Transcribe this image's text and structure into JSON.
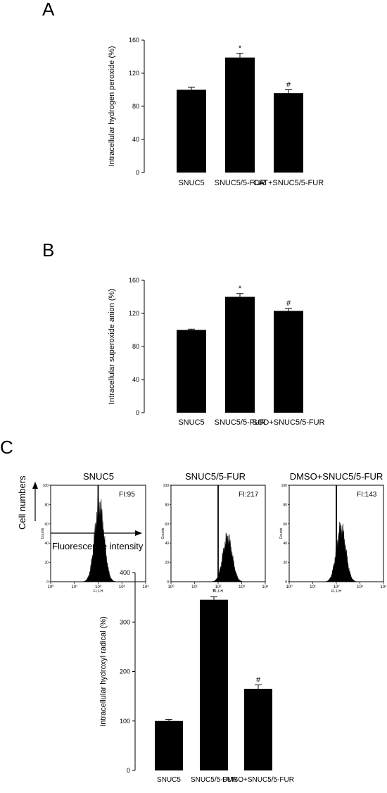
{
  "panels": {
    "a": {
      "letter": "A"
    },
    "b": {
      "letter": "B"
    },
    "c": {
      "letter": "C"
    }
  },
  "histograms": {
    "y_axis_label": "Cell numbers",
    "x_axis_label": "Fluorescence intensity",
    "inner_ylabel": "Counts",
    "inner_xlabel": "FL1-H",
    "y_ticks": [
      "0",
      "20",
      "40",
      "60",
      "80",
      "100"
    ],
    "x_ticks": [
      "10⁰",
      "10¹",
      "10²",
      "10³",
      "10⁴"
    ],
    "items": [
      {
        "title": "SNUC5",
        "fi": "FI:95",
        "peak_log": 2.05,
        "peak_height": 0.78
      },
      {
        "title": "SNUC5/5-FUR",
        "fi": "FI:217",
        "peak_log": 2.4,
        "peak_height": 0.45
      },
      {
        "title": "DMSO+SNUC5/5-FUR",
        "fi": "FI:143",
        "peak_log": 2.2,
        "peak_height": 0.55
      }
    ]
  },
  "chart_data": [
    {
      "type": "bar",
      "categories": [
        "SNUC5",
        "SNUC5/5-FUR",
        "CAT+SNUC5/5-FUR"
      ],
      "values": [
        100,
        139,
        96
      ],
      "errors": [
        3,
        5,
        4
      ],
      "markers": [
        "",
        "*",
        "#"
      ],
      "ylabel": "Intracellular hydrogen peroxide (%)",
      "ylim": [
        0,
        160
      ],
      "yticks": [
        0,
        40,
        80,
        120,
        160
      ],
      "color": "#000000"
    },
    {
      "type": "bar",
      "categories": [
        "SNUC5",
        "SNUC5/5-FUR",
        "SOD+SNUC5/5-FUR"
      ],
      "values": [
        100,
        140,
        123
      ],
      "errors": [
        1,
        4,
        3
      ],
      "markers": [
        "",
        "*",
        "#"
      ],
      "ylabel": "Intracellular superoxide anion (%)",
      "ylim": [
        0,
        160
      ],
      "yticks": [
        0,
        40,
        80,
        120,
        160
      ],
      "color": "#000000"
    },
    {
      "type": "bar",
      "categories": [
        "SNUC5",
        "SNUC5/5-FUR",
        "DMSO+SNUC5/5-FUR"
      ],
      "values": [
        100,
        345,
        165
      ],
      "errors": [
        3,
        6,
        8
      ],
      "markers": [
        "",
        "*",
        "#"
      ],
      "ylabel": "Intracellular hydroxyl radical (%)",
      "ylim": [
        0,
        400
      ],
      "yticks": [
        0,
        100,
        200,
        300,
        400
      ],
      "color": "#000000"
    }
  ]
}
